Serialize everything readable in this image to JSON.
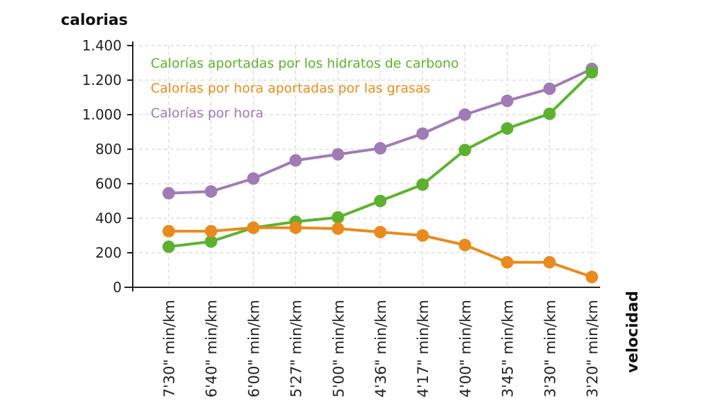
{
  "chart_data": {
    "type": "line",
    "ylabel": "calorias",
    "xlabel": "velocidad",
    "ylim": [
      0,
      1400
    ],
    "yticks": [
      0,
      200,
      400,
      600,
      800,
      1000,
      1200,
      1400
    ],
    "ytick_labels": [
      "0",
      "200",
      "400",
      "600",
      "800",
      "1.000",
      "1.200",
      "1.400"
    ],
    "grid": true,
    "legend_placement": "top-left",
    "categories": [
      "7'30\" min/km",
      "6'40\" min/km",
      "6'00\" min/km",
      "5'27\" min/km",
      "5'00\" min/km",
      "4'36\" min/km",
      "4'17\" min/km",
      "4'00\" min/km",
      "3'45\" min/km",
      "3'30\" min/km",
      "3'20\" min/km"
    ],
    "series": [
      {
        "name": "Calorías por hora",
        "color": "#a07bb5",
        "values": [
          545,
          555,
          630,
          735,
          770,
          805,
          890,
          1000,
          1080,
          1150,
          1265
        ]
      },
      {
        "name": "Calorías aportadas por los hidratos de carbono",
        "color": "#5db12f",
        "values": [
          235,
          265,
          345,
          380,
          405,
          500,
          595,
          795,
          920,
          1005,
          1245
        ]
      },
      {
        "name": "Calorías por hora aportadas por las grasas",
        "color": "#e98a1e",
        "values": [
          325,
          325,
          345,
          345,
          340,
          320,
          300,
          245,
          145,
          145,
          60
        ]
      }
    ],
    "legend_order": [
      1,
      2,
      0
    ]
  }
}
